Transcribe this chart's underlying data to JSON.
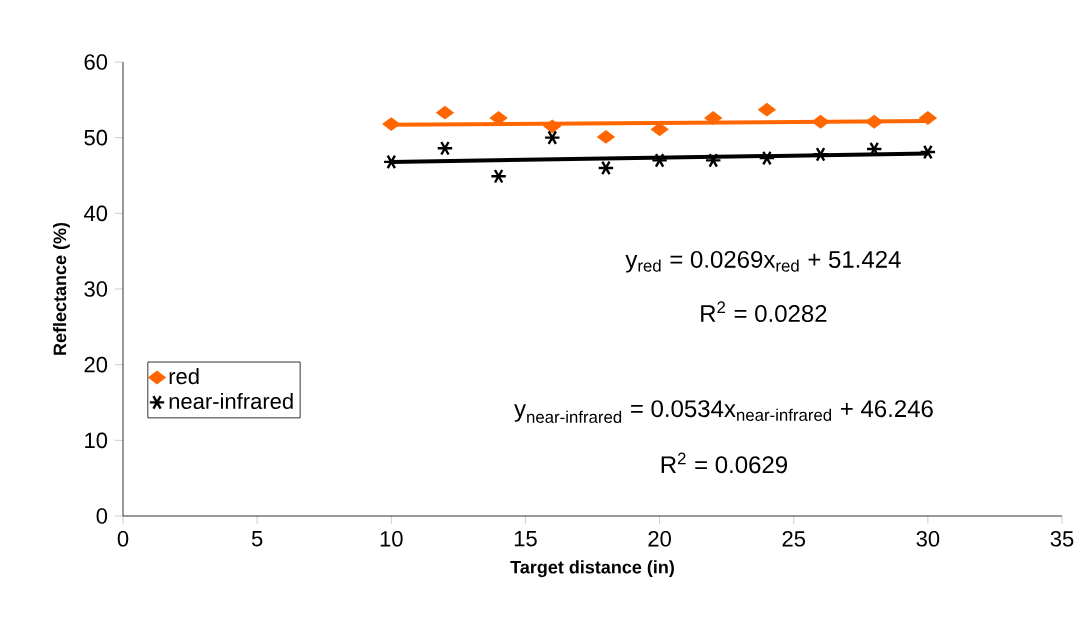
{
  "chart_data": {
    "type": "scatter",
    "xlabel": "Target distance (in)",
    "ylabel": "Reflectance (%)",
    "xlim": [
      0,
      35
    ],
    "xticks": [
      0,
      5,
      10,
      15,
      20,
      25,
      30,
      35
    ],
    "ylim": [
      0,
      60
    ],
    "yticks": [
      0,
      10,
      20,
      30,
      40,
      50,
      60
    ],
    "legend": "left",
    "grid": false,
    "series": [
      {
        "name": "red",
        "color": "#ff6600",
        "marker": "diamond",
        "x": [
          10,
          12,
          14,
          16,
          18,
          20,
          22,
          24,
          26,
          28,
          30
        ],
        "values": [
          51.8,
          53.3,
          52.6,
          51.5,
          50.1,
          51.1,
          52.6,
          53.7,
          52.1,
          52.1,
          52.6
        ]
      },
      {
        "name": "near-infrared",
        "color": "#000000",
        "marker": "cross",
        "x": [
          10,
          12,
          14,
          16,
          18,
          20,
          22,
          24,
          26,
          28,
          30
        ],
        "values": [
          46.8,
          48.6,
          44.9,
          50.0,
          46.0,
          47.0,
          47.0,
          47.3,
          47.8,
          48.5,
          48.1
        ]
      },
      {
        "type": "line",
        "color": "#ff6600",
        "marker": "none",
        "line_style": "solid",
        "x": [
          10,
          30
        ],
        "values": [
          51.7,
          52.2
        ]
      },
      {
        "type": "line",
        "color": "#000000",
        "marker": "none",
        "line_style": "solid",
        "x": [
          10,
          30
        ],
        "values": [
          46.8,
          47.9
        ]
      }
    ],
    "annotations": [
      "y$_{red}$ = 0.0269x$_{red}$ + 51.424",
      "R$^{2}$ = 0.0282",
      "\\text{y}_{\\text{near-infrared}}\\text{ = 0.0534x}_{\\text{near-infrared}}\\text{ + 46.246}",
      "R$^{2}$ = 0.0629"
    ]
  }
}
